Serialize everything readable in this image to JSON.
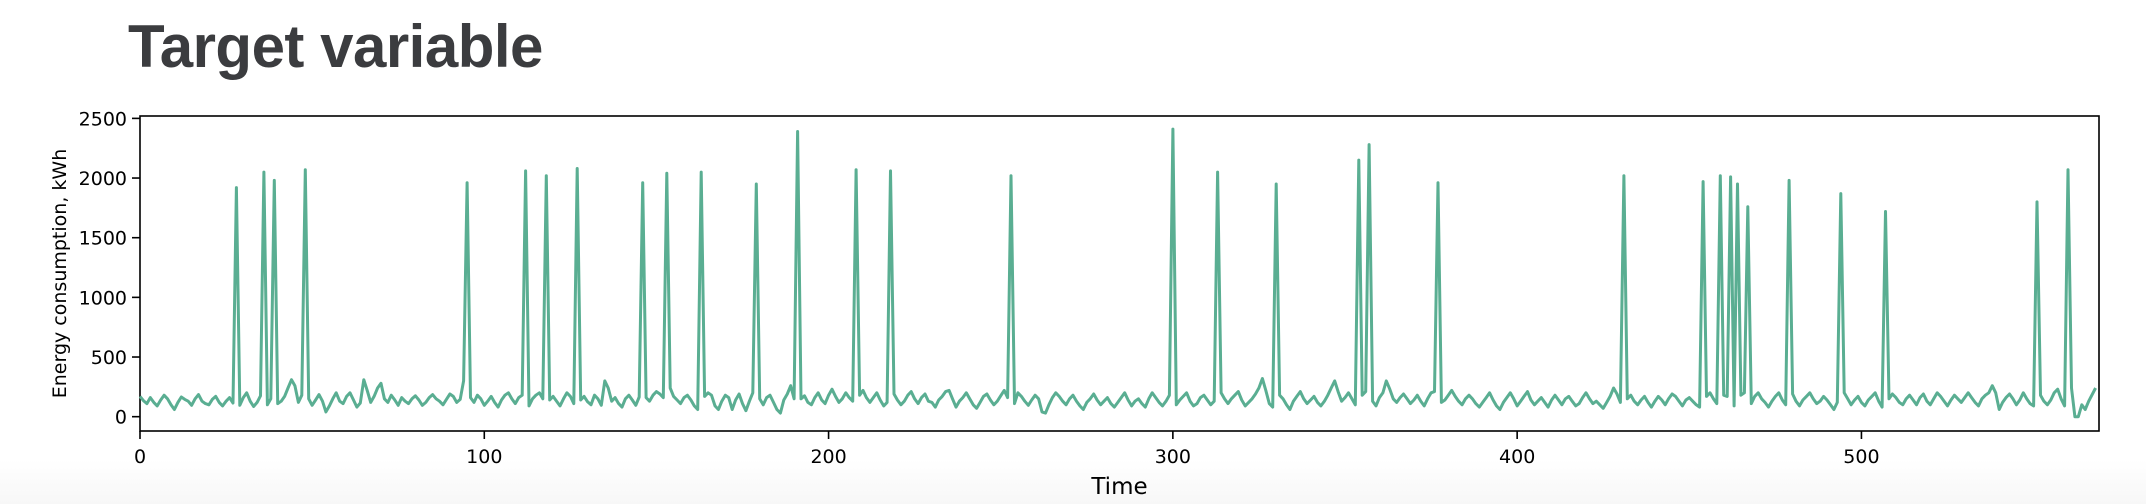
{
  "page": {
    "title": "Target variable"
  },
  "chart_data": {
    "type": "line",
    "title": "",
    "xlabel": "Time",
    "ylabel": "Energy consumption, kWh",
    "xlim": [
      0,
      569
    ],
    "ylim": [
      -120,
      2520
    ],
    "xticks": [
      0,
      100,
      200,
      300,
      400,
      500
    ],
    "yticks": [
      0,
      500,
      1000,
      1500,
      2000,
      2500
    ],
    "grid": false,
    "legend": "none",
    "series": [
      {
        "color": "#5aae92",
        "baseline": [
          170,
          135,
          110,
          160,
          120,
          90,
          140,
          180,
          150,
          100,
          60,
          120,
          165,
          145,
          130,
          95,
          150,
          185,
          130,
          110,
          100,
          145,
          170,
          120,
          90,
          130,
          160,
          115,
          140,
          95,
          160,
          200,
          130,
          85,
          120,
          175,
          140,
          100,
          150,
          60,
          110,
          130,
          170,
          240,
          310,
          260,
          120,
          180,
          200,
          150,
          95,
          140,
          185,
          130,
          40,
          90,
          150,
          200,
          130,
          110,
          170,
          200,
          140,
          80,
          115,
          310,
          220,
          120,
          170,
          240,
          280,
          150,
          120,
          180,
          140,
          95,
          160,
          130,
          110,
          150,
          175,
          140,
          95,
          120,
          160,
          185,
          150,
          130,
          100,
          145,
          190,
          170,
          120,
          145,
          300,
          270,
          160,
          120,
          180,
          150,
          95,
          130,
          170,
          120,
          80,
          140,
          180,
          200,
          150,
          110,
          160,
          180,
          120,
          90,
          150,
          180,
          200,
          150,
          110,
          140,
          170,
          130,
          90,
          150,
          200,
          170,
          110,
          60,
          140,
          170,
          125,
          100,
          180,
          150,
          95,
          300,
          240,
          130,
          160,
          110,
          80,
          150,
          180,
          140,
          95,
          165,
          200,
          160,
          130,
          180,
          210,
          190,
          160,
          210,
          240,
          170,
          140,
          110,
          160,
          180,
          140,
          90,
          60,
          120,
          170,
          200,
          180,
          90,
          60,
          130,
          180,
          160,
          60,
          140,
          190,
          110,
          50,
          130,
          200,
          230,
          150,
          100,
          160,
          180,
          120,
          60,
          30,
          140,
          190,
          260,
          150,
          110,
          150,
          175,
          120,
          100,
          160,
          200,
          140,
          110,
          180,
          230,
          170,
          120,
          150,
          200,
          160,
          130,
          110,
          180,
          220,
          160,
          120,
          160,
          200,
          140,
          90,
          120,
          160,
          190,
          140,
          100,
          130,
          180,
          210,
          150,
          110,
          160,
          190,
          130,
          120,
          80,
          140,
          170,
          210,
          220,
          150,
          80,
          130,
          160,
          200,
          150,
          100,
          70,
          120,
          170,
          190,
          140,
          100,
          130,
          175,
          220,
          160,
          60,
          110,
          200,
          170,
          130,
          95,
          140,
          180,
          150,
          40,
          30,
          100,
          160,
          200,
          170,
          130,
          100,
          150,
          180,
          130,
          90,
          60,
          120,
          150,
          190,
          140,
          100,
          130,
          160,
          110,
          80,
          120,
          160,
          200,
          140,
          90,
          130,
          150,
          110,
          80,
          150,
          200,
          160,
          120,
          90,
          130,
          180,
          160,
          100,
          140,
          170,
          200,
          130,
          90,
          110,
          160,
          180,
          140,
          100,
          130,
          170,
          200,
          150,
          110,
          150,
          180,
          210,
          140,
          90,
          120,
          150,
          190,
          240,
          320,
          220,
          110,
          80,
          140,
          180,
          150,
          100,
          60,
          130,
          170,
          210,
          150,
          110,
          140,
          170,
          120,
          90,
          130,
          180,
          240,
          300,
          210,
          130,
          160,
          200,
          150,
          100,
          140,
          180,
          210,
          170,
          130,
          90,
          160,
          200,
          300,
          230,
          150,
          120,
          160,
          190,
          150,
          110,
          140,
          180,
          130,
          90,
          150,
          200,
          210,
          160,
          120,
          140,
          180,
          220,
          170,
          130,
          100,
          150,
          180,
          150,
          110,
          80,
          120,
          160,
          200,
          140,
          90,
          60,
          120,
          160,
          200,
          150,
          90,
          130,
          170,
          210,
          140,
          100,
          130,
          160,
          120,
          80,
          140,
          180,
          140,
          100,
          150,
          170,
          130,
          90,
          110,
          160,
          200,
          150,
          110,
          130,
          100,
          70,
          120,
          170,
          240,
          190,
          120,
          90,
          150,
          180,
          130,
          100,
          140,
          170,
          120,
          80,
          130,
          170,
          140,
          100,
          150,
          190,
          170,
          130,
          90,
          140,
          160,
          130,
          100,
          80,
          120,
          170,
          200,
          150,
          110,
          140,
          180,
          170,
          130,
          90,
          140,
          180,
          200,
          150,
          110,
          170,
          200,
          150,
          120,
          80,
          130,
          170,
          200,
          140,
          100,
          150,
          190,
          130,
          90,
          140,
          170,
          200,
          150,
          110,
          130,
          170,
          140,
          100,
          60,
          120,
          160,
          200,
          150,
          100,
          140,
          170,
          120,
          90,
          140,
          170,
          200,
          130,
          80,
          100,
          150,
          190,
          160,
          120,
          100,
          150,
          180,
          140,
          100,
          160,
          190,
          130,
          100,
          150,
          200,
          170,
          130,
          90,
          140,
          180,
          150,
          120,
          160,
          200,
          160,
          120,
          90,
          150,
          180,
          200,
          260,
          200,
          150,
          120,
          160,
          190,
          150,
          100,
          140,
          200,
          150,
          110,
          90,
          140,
          180,
          130,
          100,
          140,
          200,
          230,
          150,
          90,
          200,
          240,
          180,
          150,
          100,
          60,
          130
        ],
        "spikes": [
          [
            28,
            1920
          ],
          [
            36,
            2050
          ],
          [
            39,
            1980
          ],
          [
            48,
            2070
          ],
          [
            95,
            1960
          ],
          [
            112,
            2060
          ],
          [
            118,
            2020
          ],
          [
            127,
            2080
          ],
          [
            146,
            1960
          ],
          [
            153,
            2040
          ],
          [
            163,
            2050
          ],
          [
            179,
            1950
          ],
          [
            191,
            2390
          ],
          [
            208,
            2070
          ],
          [
            218,
            2060
          ],
          [
            253,
            2020
          ],
          [
            300,
            2410
          ],
          [
            313,
            2050
          ],
          [
            330,
            1950
          ],
          [
            354,
            2150
          ],
          [
            357,
            2280
          ],
          [
            377,
            1960
          ],
          [
            431,
            2020
          ],
          [
            454,
            1970
          ],
          [
            459,
            2020
          ],
          [
            462,
            2010
          ],
          [
            464,
            1950
          ],
          [
            467,
            1760
          ],
          [
            479,
            1980
          ],
          [
            494,
            1870
          ],
          [
            507,
            1720
          ],
          [
            551,
            1800
          ],
          [
            560,
            2070
          ]
        ],
        "extras": [
          [
            540,
            60
          ],
          [
            562,
            0
          ],
          [
            563,
            0
          ],
          [
            568,
            240
          ]
        ]
      }
    ]
  }
}
